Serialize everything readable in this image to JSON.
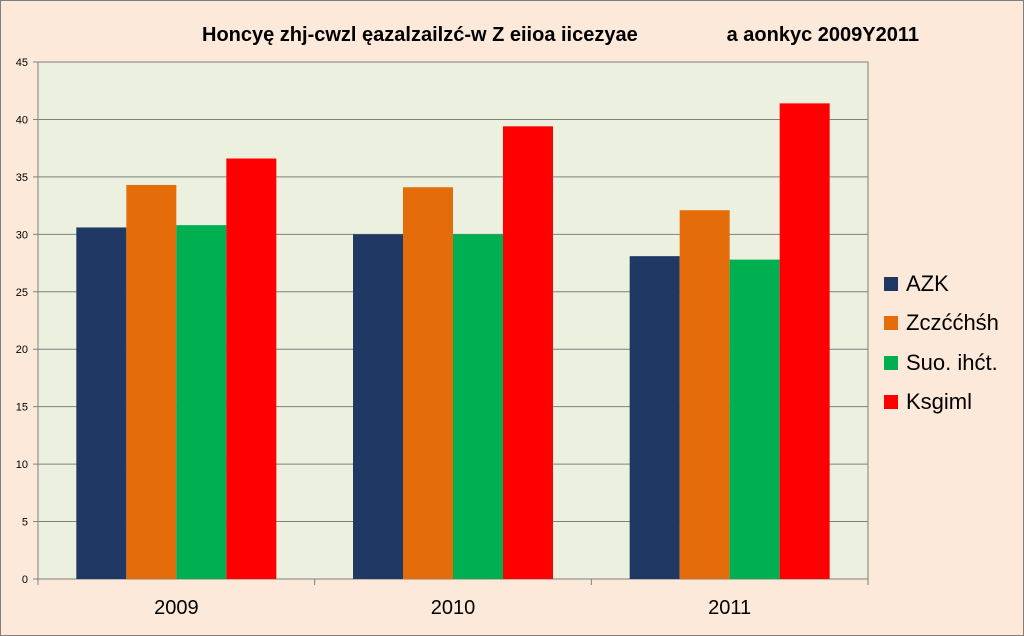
{
  "chart_data": {
    "type": "bar",
    "title": "Honcyę zhj-cwzl ęazalzailzć-w Z eiioa iicezyae                a aonkyc 2009Y2011",
    "categories": [
      "2009",
      "2010",
      "2011"
    ],
    "series": [
      {
        "name": "AZK",
        "color": "#1f3864",
        "values": [
          30.6,
          30.0,
          28.1
        ]
      },
      {
        "name": "Zczććhśh",
        "color": "#e46c0a",
        "values": [
          34.3,
          34.1,
          32.1
        ]
      },
      {
        "name": "Suo. ihćt.",
        "color": "#00b050",
        "values": [
          30.8,
          30.0,
          27.8
        ]
      },
      {
        "name": "Ksgiml",
        "color": "#ff0000",
        "values": [
          36.6,
          39.4,
          41.4
        ]
      }
    ],
    "ylim": [
      0,
      45
    ],
    "yticks": [
      "0",
      "5",
      "10",
      "15",
      "20",
      "25",
      "30",
      "35",
      "40",
      "45"
    ],
    "grid": true,
    "legend_position": "right",
    "xlabel": "",
    "ylabel": "",
    "plot_background": "#ebf1de"
  }
}
